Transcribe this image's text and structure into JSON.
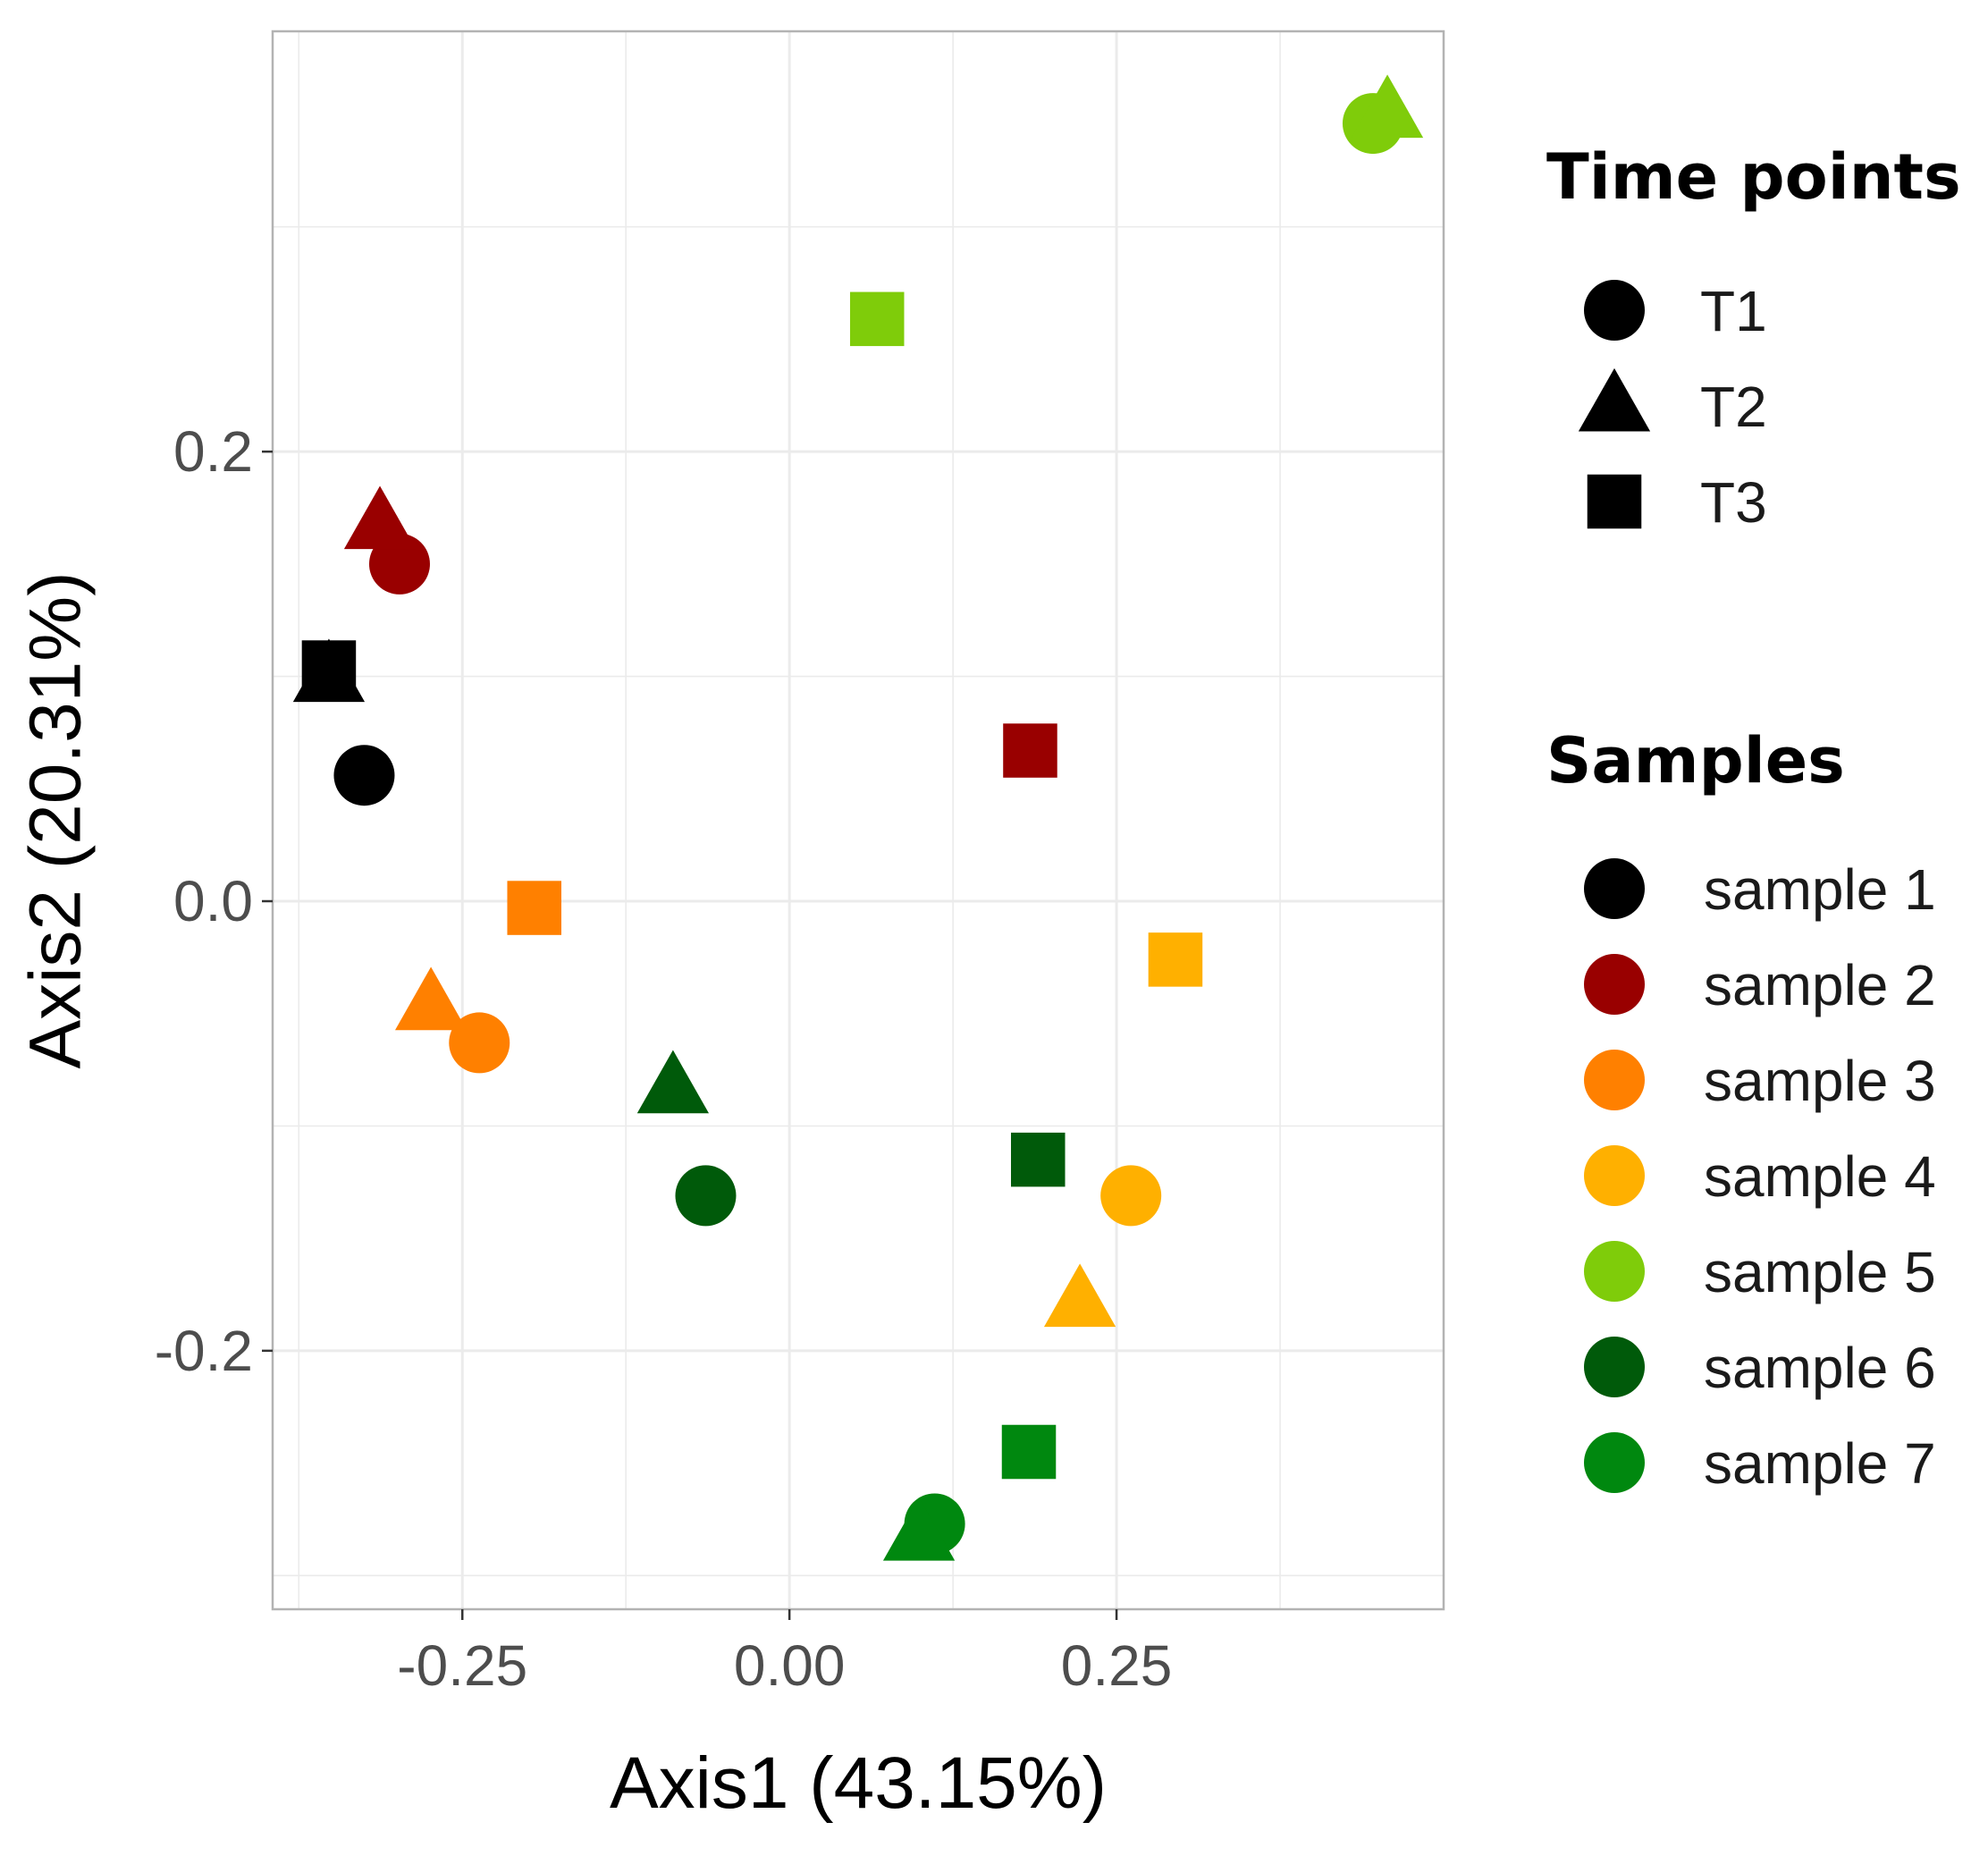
{
  "chart_data": {
    "type": "scatter",
    "xlabel": "Axis1 (43.15%)",
    "ylabel": "Axis2 (20.31%)",
    "xlim": [
      -0.395,
      0.5
    ],
    "ylim": [
      -0.315,
      0.387
    ],
    "x_ticks": [
      -0.25,
      0.0,
      0.25
    ],
    "x_tick_labels": [
      "-0.25",
      "0.00",
      "0.25"
    ],
    "y_ticks": [
      -0.2,
      0.0,
      0.2
    ],
    "y_tick_labels": [
      "-0.2",
      "0.0",
      "0.2"
    ],
    "grid": true,
    "legend_position": "right",
    "shape_legend": {
      "title": "Time points",
      "items": [
        {
          "label": "T1",
          "shape": "circle"
        },
        {
          "label": "T2",
          "shape": "triangle"
        },
        {
          "label": "T3",
          "shape": "square"
        }
      ]
    },
    "color_legend": {
      "title": "Samples",
      "items": [
        {
          "label": "sample 1",
          "color": "#000000"
        },
        {
          "label": "sample 2",
          "color": "#990000"
        },
        {
          "label": "sample 3",
          "color": "#ff8000"
        },
        {
          "label": "sample 4",
          "color": "#ffb000"
        },
        {
          "label": "sample 5",
          "color": "#7fcc0a"
        },
        {
          "label": "sample 6",
          "color": "#005a0a"
        },
        {
          "label": "sample 7",
          "color": "#00880f"
        }
      ]
    },
    "points": [
      {
        "sample": "sample 1",
        "time": "T1",
        "x": -0.325,
        "y": 0.056
      },
      {
        "sample": "sample 1",
        "time": "T2",
        "x": -0.352,
        "y": 0.1
      },
      {
        "sample": "sample 1",
        "time": "T3",
        "x": -0.352,
        "y": 0.104
      },
      {
        "sample": "sample 2",
        "time": "T1",
        "x": -0.298,
        "y": 0.15
      },
      {
        "sample": "sample 2",
        "time": "T2",
        "x": -0.313,
        "y": 0.168
      },
      {
        "sample": "sample 2",
        "time": "T3",
        "x": 0.184,
        "y": 0.067
      },
      {
        "sample": "sample 3",
        "time": "T1",
        "x": -0.237,
        "y": -0.063
      },
      {
        "sample": "sample 3",
        "time": "T2",
        "x": -0.274,
        "y": -0.046
      },
      {
        "sample": "sample 3",
        "time": "T3",
        "x": -0.195,
        "y": -0.003
      },
      {
        "sample": "sample 4",
        "time": "T1",
        "x": 0.261,
        "y": -0.131
      },
      {
        "sample": "sample 4",
        "time": "T2",
        "x": 0.222,
        "y": -0.178
      },
      {
        "sample": "sample 4",
        "time": "T3",
        "x": 0.295,
        "y": -0.026
      },
      {
        "sample": "sample 5",
        "time": "T1",
        "x": 0.446,
        "y": 0.346
      },
      {
        "sample": "sample 5",
        "time": "T2",
        "x": 0.457,
        "y": 0.351
      },
      {
        "sample": "sample 5",
        "time": "T3",
        "x": 0.067,
        "y": 0.259
      },
      {
        "sample": "sample 6",
        "time": "T1",
        "x": -0.064,
        "y": -0.131
      },
      {
        "sample": "sample 6",
        "time": "T2",
        "x": -0.089,
        "y": -0.083
      },
      {
        "sample": "sample 6",
        "time": "T3",
        "x": 0.19,
        "y": -0.115
      },
      {
        "sample": "sample 7",
        "time": "T1",
        "x": 0.111,
        "y": -0.277
      },
      {
        "sample": "sample 7",
        "time": "T2",
        "x": 0.099,
        "y": -0.282
      },
      {
        "sample": "sample 7",
        "time": "T3",
        "x": 0.183,
        "y": -0.245
      }
    ]
  }
}
